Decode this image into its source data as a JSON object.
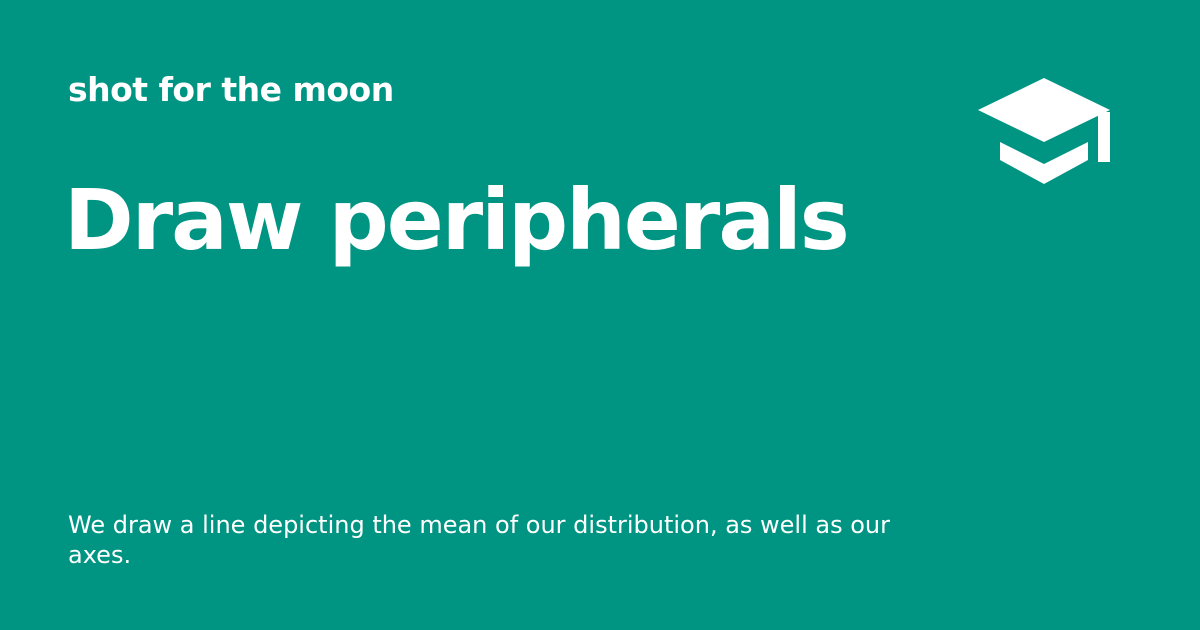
{
  "header": {
    "site_name": "shot for the moon",
    "logo_icon": "graduation-cap-icon"
  },
  "main": {
    "title": "Draw peripherals",
    "description": "We draw a line depicting the mean of our distribution, as well as our axes."
  },
  "colors": {
    "background": "#009583",
    "text": "#ffffff"
  }
}
